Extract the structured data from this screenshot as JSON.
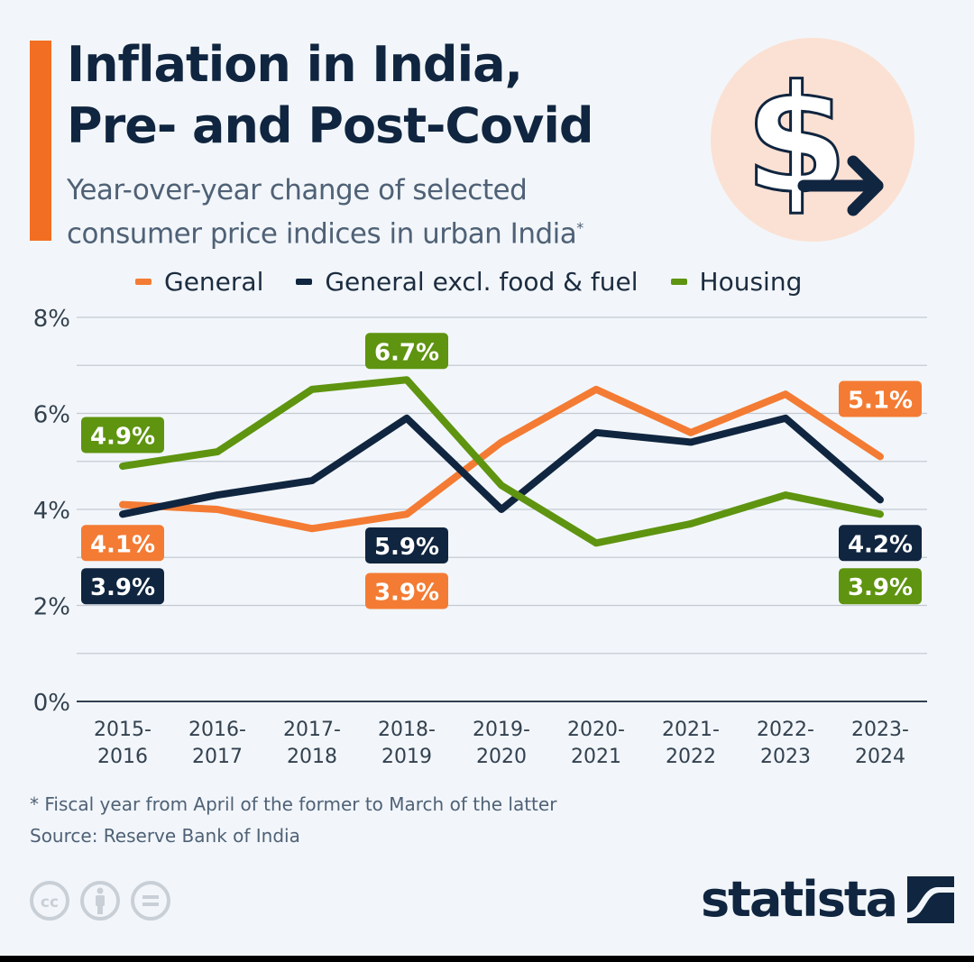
{
  "header": {
    "title_line1": "Inflation in India,",
    "title_line2": "Pre- and Post-Covid",
    "subtitle_line1": "Year-over-year change of selected",
    "subtitle_line2": "consumer price indices in urban India",
    "subtitle_marker": "*",
    "hero_icon": "dollar-arrow-right-icon"
  },
  "colors": {
    "accent": "#f26e22",
    "general": "#f47b33",
    "excl": "#10253f",
    "housing": "#5e9410",
    "grid": "#c4cad3",
    "axis": "#33414f",
    "hero_bg": "#fbe1d4"
  },
  "legend": [
    {
      "label": "General",
      "color": "#f47b33"
    },
    {
      "label": "General excl. food & fuel",
      "color": "#10253f"
    },
    {
      "label": "Housing",
      "color": "#5e9410"
    }
  ],
  "chart_data": {
    "type": "line",
    "title": "Inflation in India, Pre- and Post-Covid",
    "xlabel": "",
    "ylabel": "",
    "ylim": [
      0,
      8
    ],
    "yticks": [
      0,
      2,
      4,
      6,
      8
    ],
    "ytick_labels": [
      "0%",
      "2%",
      "4%",
      "6%",
      "8%"
    ],
    "grid": true,
    "legend_position": "top",
    "categories": [
      "2015-2016",
      "2016-2017",
      "2017-2018",
      "2018-2019",
      "2019-2020",
      "2020-2021",
      "2021-2022",
      "2022-2023",
      "2023-2024"
    ],
    "category_labels": [
      [
        "2015-",
        "2016"
      ],
      [
        "2016-",
        "2017"
      ],
      [
        "2017-",
        "2018"
      ],
      [
        "2018-",
        "2019"
      ],
      [
        "2019-",
        "2020"
      ],
      [
        "2020-",
        "2021"
      ],
      [
        "2021-",
        "2022"
      ],
      [
        "2022-",
        "2023"
      ],
      [
        "2023-",
        "2024"
      ]
    ],
    "series": [
      {
        "name": "General",
        "key": "general",
        "values": [
          4.1,
          4.0,
          3.6,
          3.9,
          5.4,
          6.5,
          5.6,
          6.4,
          5.1
        ]
      },
      {
        "name": "General excl. food & fuel",
        "key": "excl",
        "values": [
          3.9,
          4.3,
          4.6,
          5.9,
          4.0,
          5.6,
          5.4,
          5.9,
          4.2
        ]
      },
      {
        "name": "Housing",
        "key": "housing",
        "values": [
          4.9,
          5.2,
          6.5,
          6.7,
          4.5,
          3.3,
          3.7,
          4.3,
          3.9
        ]
      }
    ],
    "annotations": [
      {
        "series": "housing",
        "index": 0,
        "text": "4.9%",
        "label_y": 5.55
      },
      {
        "series": "general",
        "index": 0,
        "text": "4.1%",
        "label_y": 3.3
      },
      {
        "series": "excl",
        "index": 0,
        "text": "3.9%",
        "label_y": 2.4
      },
      {
        "series": "housing",
        "index": 3,
        "text": "6.7%",
        "label_y": 7.3
      },
      {
        "series": "excl",
        "index": 3,
        "text": "5.9%",
        "label_y": 3.25
      },
      {
        "series": "general",
        "index": 3,
        "text": "3.9%",
        "label_y": 2.3
      },
      {
        "series": "general",
        "index": 8,
        "text": "5.1%",
        "label_y": 6.3
      },
      {
        "series": "excl",
        "index": 8,
        "text": "4.2%",
        "label_y": 3.3
      },
      {
        "series": "housing",
        "index": 8,
        "text": "3.9%",
        "label_y": 2.4
      }
    ]
  },
  "footer": {
    "footnote": "* Fiscal year from April of the former to March of the latter",
    "source": "Source: Reserve Bank of India",
    "license_icons": [
      "cc-icon",
      "attribution-icon",
      "no-derivatives-icon"
    ],
    "brand": "statista"
  }
}
